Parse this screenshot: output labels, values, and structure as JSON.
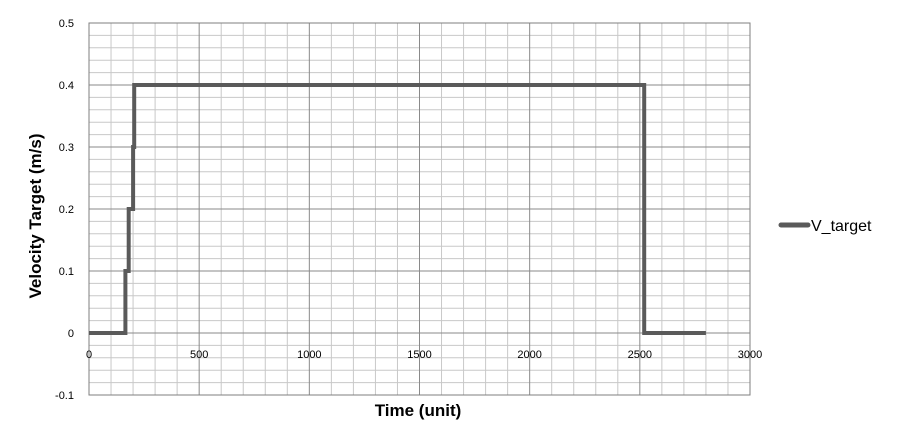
{
  "chart_data": {
    "type": "line",
    "title": "",
    "xlabel": "Time (unit)",
    "ylabel": "Velocity Target (m/s)",
    "xlim": [
      0,
      3000
    ],
    "ylim": [
      -0.1,
      0.5
    ],
    "x_major_ticks": [
      0,
      500,
      1000,
      1500,
      2000,
      2500,
      3000
    ],
    "x_minor_step": 100,
    "y_major_ticks": [
      -0.1,
      0,
      0.1,
      0.2,
      0.3,
      0.4,
      0.5
    ],
    "y_minor_step": 0.02,
    "x_tick_labels": [
      "0",
      "500",
      "1000",
      "1500",
      "2000",
      "2500",
      "3000"
    ],
    "y_tick_labels": [
      "-0.1",
      "0",
      "0.1",
      "0.2",
      "0.3",
      "0.4",
      "0.5"
    ],
    "grid": true,
    "legend_position": "right",
    "series": [
      {
        "name": "V_target",
        "color": "#5a5a5a",
        "points": [
          [
            0,
            0
          ],
          [
            165,
            0
          ],
          [
            165,
            0.1
          ],
          [
            180,
            0.1
          ],
          [
            180,
            0.2
          ],
          [
            200,
            0.2
          ],
          [
            200,
            0.3
          ],
          [
            205,
            0.3
          ],
          [
            205,
            0.4
          ],
          [
            2520,
            0.4
          ],
          [
            2520,
            0
          ],
          [
            2800,
            0
          ]
        ]
      }
    ]
  }
}
